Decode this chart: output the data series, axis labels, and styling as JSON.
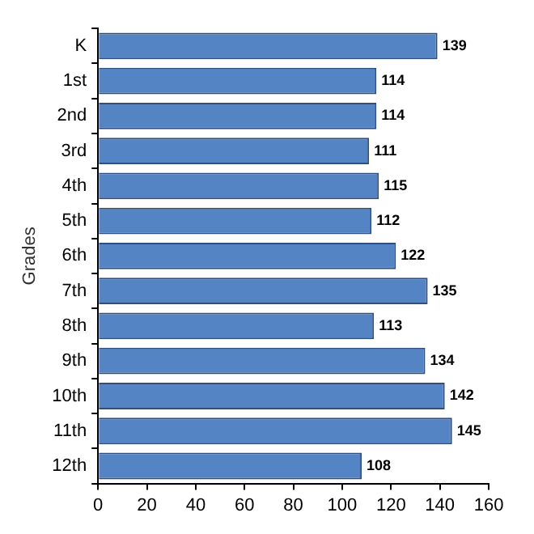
{
  "chart_data": {
    "type": "bar",
    "orientation": "horizontal",
    "ylabel": "Grades",
    "categories": [
      "K",
      "1st",
      "2nd",
      "3rd",
      "4th",
      "5th",
      "6th",
      "7th",
      "8th",
      "9th",
      "10th",
      "11th",
      "12th"
    ],
    "values": [
      139,
      114,
      114,
      111,
      115,
      112,
      122,
      135,
      113,
      134,
      142,
      145,
      108
    ],
    "color": "#5584c4",
    "xlim": [
      0,
      160
    ],
    "xticks": [
      0,
      20,
      40,
      60,
      80,
      100,
      120,
      140,
      160
    ],
    "grid": false,
    "legend": false,
    "data_labels": true
  }
}
